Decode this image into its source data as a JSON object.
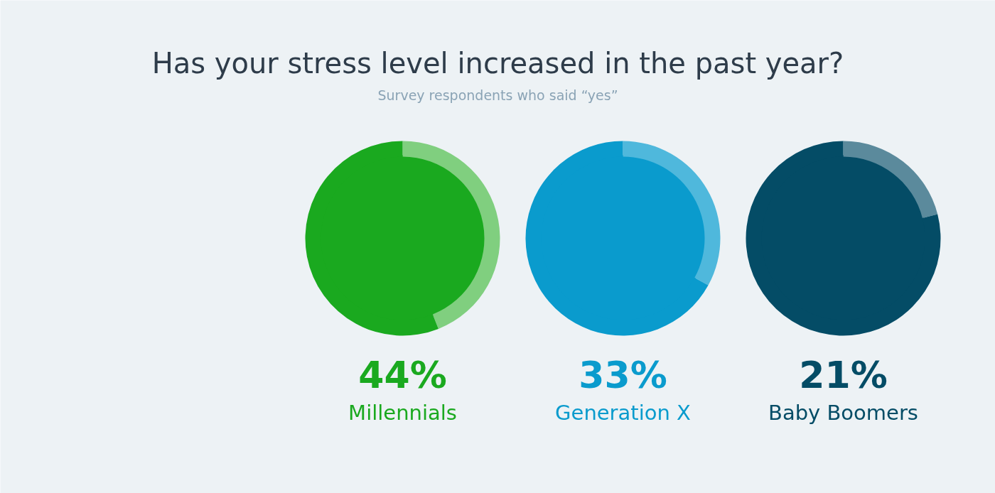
{
  "chart_data": {
    "type": "donut",
    "title": "Has your stress level increased in the past year?",
    "subtitle": "Survey respondents who said “yes”",
    "categories": [
      null,
      null
    ],
    "series": [
      {
        "name": "Millennials",
        "colors": [
          "#80cf7f",
          "#1aa91f"
        ],
        "values": [
          44,
          56
        ]
      },
      {
        "name": "Generation X",
        "colors": [
          "#4fb8dc",
          "#0a9bcd"
        ],
        "values": [
          33,
          67
        ]
      },
      {
        "name": "Baby Boomers",
        "colors": [
          "#5b8a9c",
          "#044c66"
        ],
        "values": [
          21,
          79
        ]
      }
    ],
    "annotations": [
      "44%",
      "33%",
      "21%"
    ]
  }
}
